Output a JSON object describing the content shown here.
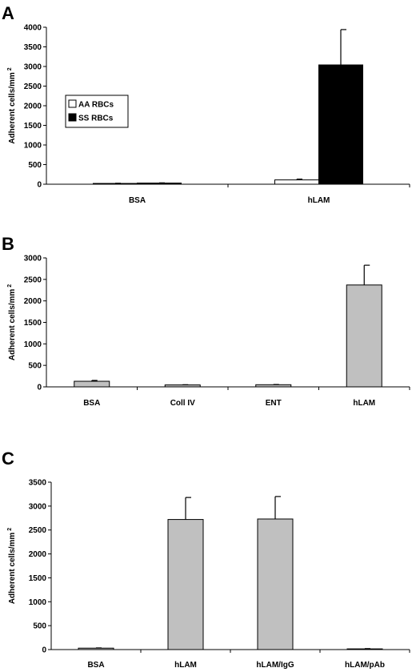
{
  "chart_data": [
    {
      "type": "bar",
      "panel": "A",
      "ylabel": "Adherent cells/mm",
      "ylabel_sup": "2",
      "ylim": [
        0,
        4000
      ],
      "yticks": [
        0,
        500,
        1000,
        1500,
        2000,
        2500,
        3000,
        3500,
        4000
      ],
      "categories": [
        "BSA",
        "hLAM"
      ],
      "series": [
        {
          "name": "AA RBCs",
          "color": "#ffffff",
          "values": [
            20,
            110
          ],
          "errors": [
            5,
            20
          ]
        },
        {
          "name": "SS RBCs",
          "color": "#000000",
          "values": [
            30,
            3040
          ],
          "errors": [
            5,
            900
          ]
        }
      ],
      "legend": "left"
    },
    {
      "type": "bar",
      "panel": "B",
      "ylabel": "Adherent cells/mm",
      "ylabel_sup": "2",
      "ylim": [
        0,
        3000
      ],
      "yticks": [
        0,
        500,
        1000,
        1500,
        2000,
        2500,
        3000
      ],
      "categories": [
        "BSA",
        "Coll IV",
        "ENT",
        "hLAM"
      ],
      "series": [
        {
          "color": "#c0c0c0",
          "values": [
            130,
            45,
            50,
            2370
          ],
          "errors": [
            20,
            5,
            5,
            460
          ]
        }
      ]
    },
    {
      "type": "bar",
      "panel": "C",
      "ylabel": "Adherent cells/mm",
      "ylabel_sup": "2",
      "ylim": [
        0,
        3500
      ],
      "yticks": [
        0,
        500,
        1000,
        1500,
        2000,
        2500,
        3000,
        3500
      ],
      "categories": [
        "BSA",
        "hLAM",
        "hLAM/IgG",
        "hLAM/pAb"
      ],
      "series": [
        {
          "color": "#c0c0c0",
          "values": [
            30,
            2720,
            2730,
            15
          ],
          "errors": [
            5,
            460,
            470,
            5
          ]
        }
      ]
    }
  ]
}
